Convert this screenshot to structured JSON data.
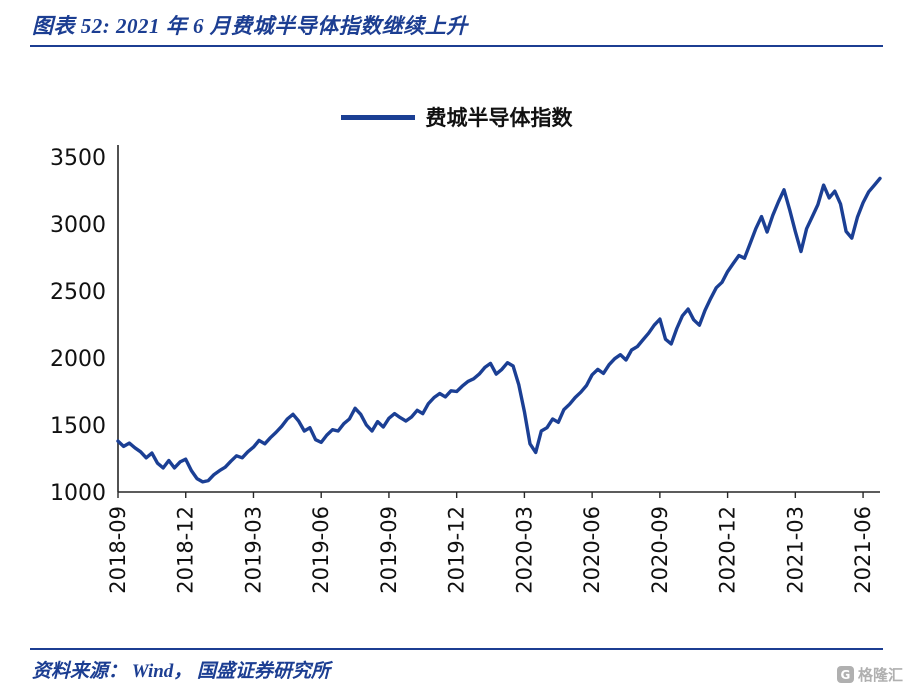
{
  "header": {
    "title": "图表 52:  2021 年 6 月费城半导体指数继续上升"
  },
  "footer": {
    "source": "资料来源： Wind， 国盛证券研究所",
    "watermark": "格隆汇",
    "watermark_icon_letter": "G"
  },
  "chart_data": {
    "type": "line",
    "title": "",
    "legend_label": "费城半导体指数",
    "series_name": "费城半导体指数",
    "line_color": "#1b3f94",
    "grid": false,
    "legend_position": "top-center",
    "ylim": [
      1000,
      3500
    ],
    "y_ticks": [
      3500,
      3000,
      2500,
      2000,
      1500,
      1000
    ],
    "x_tick_labels": [
      "2018-09",
      "2018-12",
      "2019-03",
      "2019-06",
      "2019-09",
      "2019-12",
      "2020-03",
      "2020-06",
      "2020-09",
      "2020-12",
      "2021-03",
      "2021-06"
    ],
    "x_start_month": "2018-09",
    "x_end_month": "2021-06",
    "points_per_month": 4,
    "tick_every_months": 3,
    "values": [
      1380,
      1340,
      1365,
      1330,
      1300,
      1255,
      1290,
      1215,
      1180,
      1235,
      1180,
      1225,
      1245,
      1160,
      1100,
      1075,
      1085,
      1130,
      1160,
      1185,
      1230,
      1270,
      1255,
      1300,
      1335,
      1385,
      1360,
      1405,
      1445,
      1490,
      1545,
      1580,
      1530,
      1455,
      1480,
      1390,
      1370,
      1425,
      1465,
      1455,
      1510,
      1545,
      1625,
      1580,
      1500,
      1455,
      1525,
      1485,
      1550,
      1585,
      1555,
      1530,
      1560,
      1610,
      1585,
      1660,
      1705,
      1735,
      1710,
      1755,
      1750,
      1790,
      1825,
      1845,
      1880,
      1930,
      1960,
      1880,
      1915,
      1965,
      1940,
      1800,
      1600,
      1360,
      1295,
      1455,
      1480,
      1545,
      1520,
      1615,
      1655,
      1705,
      1745,
      1795,
      1875,
      1915,
      1885,
      1950,
      1995,
      2025,
      1985,
      2060,
      2085,
      2135,
      2185,
      2245,
      2290,
      2140,
      2105,
      2220,
      2315,
      2365,
      2285,
      2245,
      2355,
      2445,
      2525,
      2565,
      2645,
      2705,
      2765,
      2745,
      2855,
      2965,
      3055,
      2940,
      3065,
      3165,
      3255,
      3105,
      2945,
      2795,
      2965,
      3055,
      3145,
      3290,
      3195,
      3245,
      3150,
      2945,
      2895,
      3050,
      3160,
      3240,
      3290,
      3340
    ]
  }
}
